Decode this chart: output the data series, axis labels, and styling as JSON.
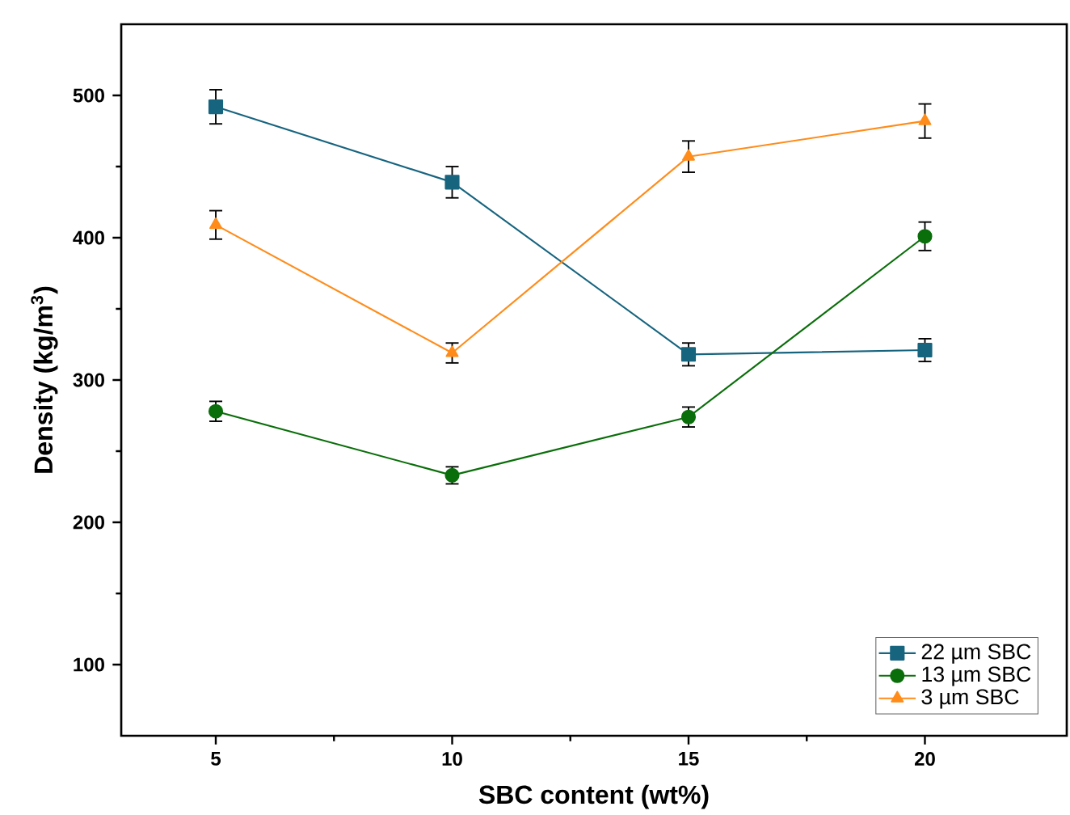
{
  "chart_data": {
    "type": "line",
    "xlabel": "SBC content (wt%)",
    "ylabel": "Density (kg/m$^{3}$)",
    "x": [
      5,
      10,
      15,
      20
    ],
    "series": [
      {
        "name": "22 µm SBC",
        "color": "#17647f",
        "marker": "square",
        "values": [
          492,
          439,
          318,
          321
        ],
        "errors": [
          12,
          11,
          8,
          8
        ]
      },
      {
        "name": "13 µm SBC",
        "color": "#0a6e0a",
        "marker": "circle",
        "values": [
          278,
          233,
          274,
          401
        ],
        "errors": [
          7,
          6,
          7,
          10
        ]
      },
      {
        "name": "3 µm SBC",
        "color": "#ff8c1a",
        "marker": "triangle",
        "values": [
          409,
          319,
          457,
          482
        ],
        "errors": [
          10,
          7,
          11,
          12
        ]
      }
    ],
    "xlim": [
      3,
      23
    ],
    "ylim": [
      50,
      550
    ],
    "xticks": [
      5,
      10,
      15,
      20
    ],
    "yticks": [
      100,
      200,
      300,
      400,
      500
    ],
    "grid": false,
    "legend": "bottom right"
  }
}
